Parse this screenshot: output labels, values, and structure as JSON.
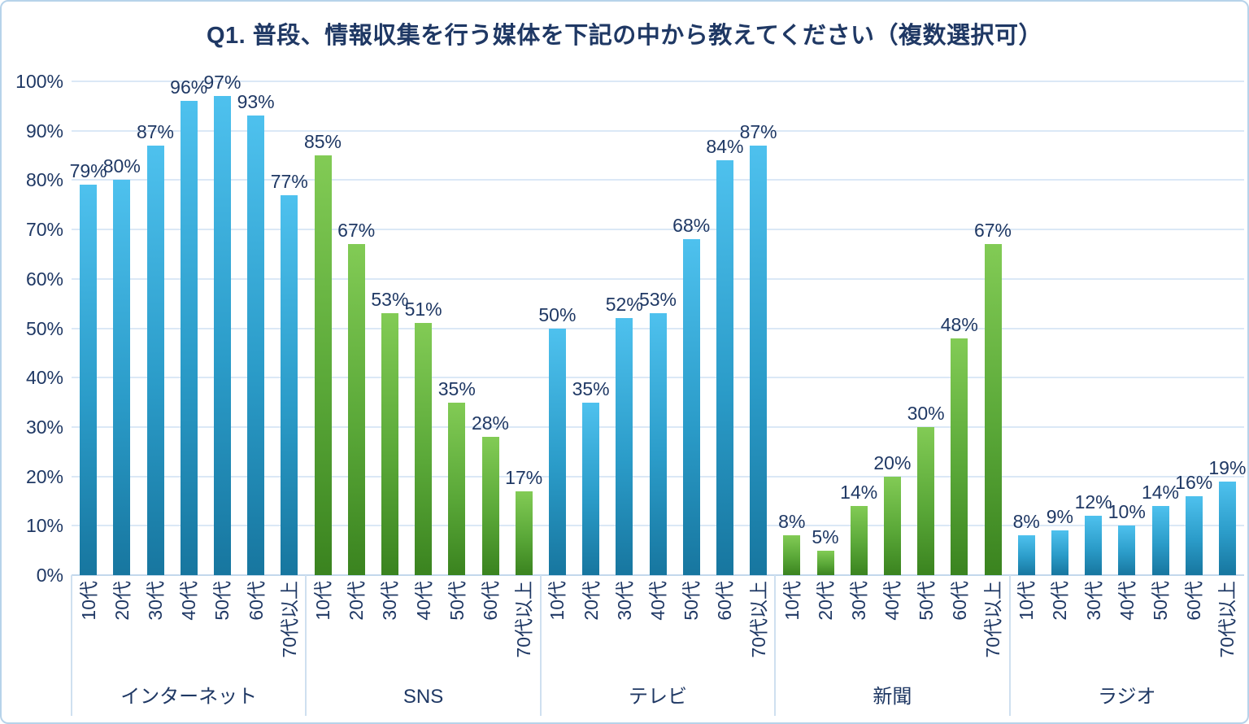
{
  "title": "Q1. 普段、情報収集を行う媒体を下記の中から教えてください（複数選択可）",
  "chart_data": {
    "type": "bar",
    "title": "Q1. 普段、情報収集を行う媒体を下記の中から教えてください（複数選択可）",
    "categories": [
      "10代",
      "20代",
      "30代",
      "40代",
      "50代",
      "60代",
      "70代以上"
    ],
    "groups": [
      {
        "name": "インターネット",
        "color": "blue",
        "values": [
          79,
          80,
          87,
          96,
          97,
          93,
          77
        ]
      },
      {
        "name": "SNS",
        "color": "green",
        "values": [
          85,
          67,
          53,
          51,
          35,
          28,
          17
        ]
      },
      {
        "name": "テレビ",
        "color": "blue",
        "values": [
          50,
          35,
          52,
          53,
          68,
          84,
          87
        ]
      },
      {
        "name": "新聞",
        "color": "green",
        "values": [
          8,
          5,
          14,
          20,
          30,
          48,
          67
        ]
      },
      {
        "name": "ラジオ",
        "color": "blue",
        "values": [
          8,
          9,
          12,
          10,
          14,
          16,
          19
        ]
      }
    ],
    "value_suffix": "%",
    "y_ticks": [
      "0%",
      "10%",
      "20%",
      "30%",
      "40%",
      "50%",
      "60%",
      "70%",
      "80%",
      "90%",
      "100%"
    ],
    "ylim": [
      0,
      100
    ],
    "grid": true,
    "legend": "none",
    "colors": {
      "blue_bar_top": "#4ec1ee",
      "blue_bar_bottom": "#17769f",
      "green_bar_top": "#82cb55",
      "green_bar_bottom": "#3a831f",
      "text": "#1f3864",
      "gridline": "#dbe8f6",
      "axis_line": "#c3d8ec",
      "frame_border": "#b7d3ea"
    }
  }
}
